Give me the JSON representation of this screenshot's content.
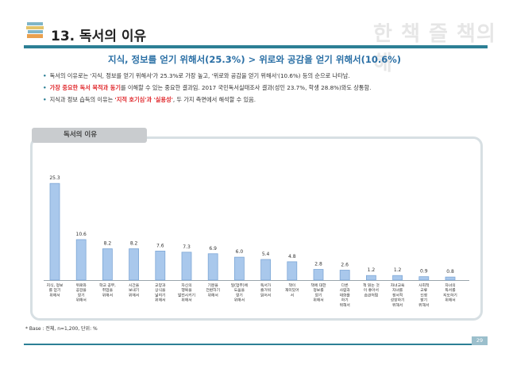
{
  "header": {
    "title": "13. 독서의 이유",
    "watermark": "한 책 즐 책의해"
  },
  "subtitle": "지식, 정보를 얻기 위해서(25.3%) > 위로와 공감을 얻기 위해서(10.6%)",
  "bullets": [
    {
      "pre": "독서의 이유로는 '지식, 정보를 얻기 위해서'가 25.3%로 가장 높고, '위로와 공감을 얻기 위해서'(10.6%) 등의 순으로 나타남.",
      "hl": "",
      "post": ""
    },
    {
      "pre": "",
      "hl": "가장 중요한 독서 목적과 동기",
      "post": "를 이해할 수 있는 중요한 결과임. 2017 국민독서실태조사 결과(성인 23.7%, 학생 28.8%)와도 상통함."
    },
    {
      "pre": "지식과 정보 습득의 이유는 ",
      "hl": "'지적 호기심'과 '실용성'",
      "post": ", 두 가지 측면에서 해석할 수 있음."
    }
  ],
  "panel_tab": "독서의 이유",
  "footnote": "* Base : 전체, n=1,200, 단위: %",
  "page_number": "29",
  "colors": {
    "accent": "#2c7f95",
    "bar_fill": "#a9c8ec",
    "bar_stroke": "#7ea7d6",
    "title_blue": "#2a6fa5",
    "highlight_red": "#e0282c"
  },
  "chart_data": {
    "type": "bar",
    "title": "독서의 이유",
    "categories": [
      [
        "지식, 정보",
        "를 얻기",
        "위해서"
      ],
      [
        "위로와",
        "공감을",
        "얻기",
        "위해서"
      ],
      [
        "학교 공부,",
        "취업을",
        "위해서"
      ],
      [
        "시간을",
        "보내기",
        "위해서"
      ],
      [
        "교양과",
        "상식을",
        "넓히기",
        "위해서"
      ],
      [
        "자신의",
        "행복을",
        "발전시키기",
        "위해서"
      ],
      [
        "기분을",
        "전환하기",
        "위해서"
      ],
      [
        "일(업무)에",
        "도움을",
        "얻기",
        "위해서"
      ],
      [
        "독서가",
        "즐거워",
        "읽어서"
      ],
      [
        "책이",
        "재미있어",
        "서"
      ],
      [
        "책에 대한",
        "정보를",
        "얻기",
        "위해서"
      ],
      [
        "다른",
        "사람과",
        "대화를",
        "하기",
        "위해서"
      ],
      [
        "책 읽는 것",
        "이 좋아서",
        "습관처럼"
      ],
      [
        "자녀교육",
        "자녀를",
        "정서적",
        "성장하기",
        "위해서"
      ],
      [
        "사회적",
        "교류",
        "인정",
        "받기",
        "위해서"
      ],
      [
        "자녀의",
        "독서를",
        "지도하기",
        "위해서"
      ]
    ],
    "values": [
      25.3,
      10.6,
      8.2,
      8.2,
      7.6,
      7.3,
      6.9,
      6.0,
      5.4,
      4.8,
      2.8,
      2.6,
      1.2,
      1.2,
      0.9,
      0.8
    ],
    "ylim": [
      0,
      27
    ],
    "grid": false,
    "data_labels": true
  }
}
